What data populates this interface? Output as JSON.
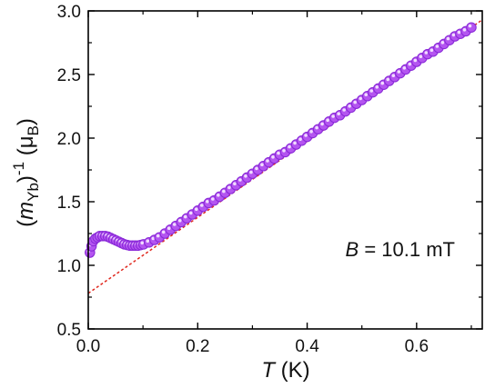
{
  "chart_data": {
    "type": "scatter",
    "title": "",
    "xlabel": {
      "symbol": "T",
      "unit": " (K)"
    },
    "ylabel": {
      "open": "(",
      "symbol": "m",
      "symbol_sub": "Yb",
      "close": ")",
      "exponent": "-1",
      "unit_open": " (μ",
      "unit_sub": "B",
      "unit_close": ")"
    },
    "xlim": [
      0.0,
      0.72
    ],
    "ylim": [
      0.5,
      3.0
    ],
    "x_ticks": [
      0.0,
      0.2,
      0.4,
      0.6
    ],
    "x_tick_labels": [
      "0.0",
      "0.2",
      "0.4",
      "0.6"
    ],
    "y_ticks": [
      0.5,
      1.0,
      1.5,
      2.0,
      2.5,
      3.0
    ],
    "y_tick_labels": [
      "0.5",
      "1.0",
      "1.5",
      "2.0",
      "2.5",
      "3.0"
    ],
    "annotation": {
      "symbol": "B",
      "text": " = 10.1 mT"
    },
    "marker_color": "#b455f0",
    "marker_edge_color": "#8a2ad8",
    "fit_color": "#e0281e",
    "series": [
      {
        "kind": "markers",
        "x": [
          0.003,
          0.006,
          0.009,
          0.013,
          0.017,
          0.021,
          0.026,
          0.031,
          0.036,
          0.041,
          0.046,
          0.051,
          0.056,
          0.061,
          0.066,
          0.071,
          0.076,
          0.081,
          0.086,
          0.091,
          0.096,
          0.101,
          0.111,
          0.121,
          0.13,
          0.14,
          0.15,
          0.16,
          0.17,
          0.18,
          0.19,
          0.2,
          0.21,
          0.22,
          0.23,
          0.24,
          0.25,
          0.26,
          0.27,
          0.28,
          0.29,
          0.3,
          0.31,
          0.32,
          0.33,
          0.34,
          0.35,
          0.36,
          0.37,
          0.38,
          0.39,
          0.4,
          0.41,
          0.42,
          0.43,
          0.44,
          0.45,
          0.46,
          0.47,
          0.48,
          0.49,
          0.5,
          0.51,
          0.52,
          0.53,
          0.54,
          0.55,
          0.56,
          0.57,
          0.58,
          0.59,
          0.6,
          0.61,
          0.62,
          0.63,
          0.64,
          0.65,
          0.66,
          0.67,
          0.68,
          0.69,
          0.7
        ],
        "y": [
          1.1,
          1.15,
          1.19,
          1.21,
          1.22,
          1.23,
          1.23,
          1.23,
          1.225,
          1.215,
          1.205,
          1.195,
          1.185,
          1.175,
          1.165,
          1.16,
          1.155,
          1.155,
          1.155,
          1.155,
          1.16,
          1.165,
          1.18,
          1.2,
          1.22,
          1.25,
          1.28,
          1.31,
          1.34,
          1.37,
          1.4,
          1.43,
          1.46,
          1.49,
          1.51,
          1.54,
          1.57,
          1.6,
          1.63,
          1.66,
          1.69,
          1.72,
          1.75,
          1.78,
          1.81,
          1.84,
          1.87,
          1.89,
          1.92,
          1.95,
          1.98,
          2.01,
          2.04,
          2.07,
          2.1,
          2.13,
          2.16,
          2.18,
          2.21,
          2.24,
          2.27,
          2.3,
          2.33,
          2.36,
          2.39,
          2.42,
          2.45,
          2.48,
          2.51,
          2.54,
          2.57,
          2.6,
          2.63,
          2.66,
          2.68,
          2.71,
          2.74,
          2.77,
          2.8,
          2.82,
          2.84,
          2.87
        ]
      },
      {
        "kind": "fit-line",
        "x": [
          0.0,
          0.72
        ],
        "y": [
          0.78,
          2.93
        ]
      }
    ]
  }
}
